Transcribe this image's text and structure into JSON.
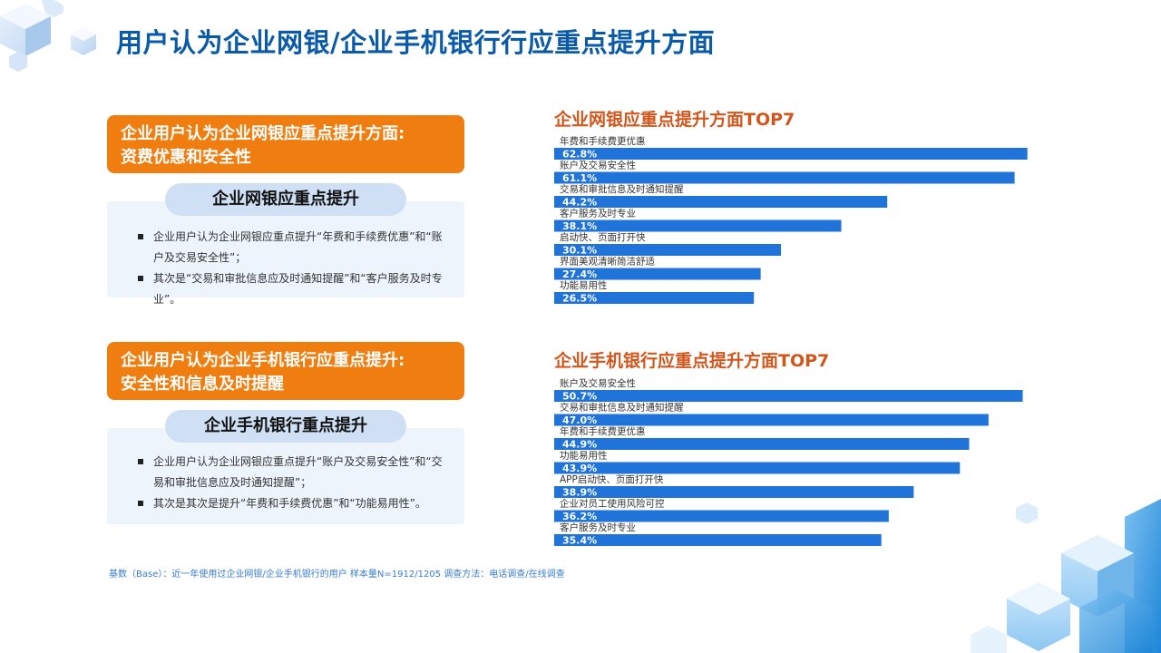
{
  "title": "用户认为企业网银/企业手机银行行应重点提升方面",
  "sections": [
    {
      "headline_line1": "企业用户认为企业网银应重点提升方面:",
      "headline_line2": "资费优惠和安全性",
      "pill": "企业网银应重点提升",
      "bullets": [
        "企业用户认为企业网银应重点提升“年费和手续费优惠”和“账户及交易安全性”；",
        "其次是“交易和审批信息应及时通知提醒”和“客户服务及时专业”。"
      ]
    },
    {
      "headline_line1": "企业用户认为企业手机银行应重点提升:",
      "headline_line2": "安全性和信息及时提醒",
      "pill": "企业手机银行重点提升",
      "bullets": [
        "企业用户认为企业网银应重点提升“账户及交易安全性”和“交易和审批信息应及时通知提醒”；",
        "其次是其次是提升“年费和手续费优惠”和“功能易用性”。"
      ]
    }
  ],
  "chart_data": [
    {
      "type": "bar",
      "orientation": "horizontal",
      "title": "企业网银应重点提升方面TOP7",
      "categories": [
        "年费和手续费更优惠",
        "账户及交易安全性",
        "交易和审批信息及时通知提醒",
        "客户服务及时专业",
        "启动快、页面打开快",
        "界面美观清晰简洁舒适",
        "功能易用性"
      ],
      "values": [
        62.8,
        61.1,
        44.2,
        38.1,
        30.1,
        27.4,
        26.5
      ],
      "labels": [
        "62.8%",
        "61.1%",
        "44.2%",
        "38.1%",
        "30.1%",
        "27.4%",
        "26.5%"
      ],
      "unit": "%",
      "xlim": [
        0,
        65
      ],
      "bar_color": "#1f73d9",
      "grid": false
    },
    {
      "type": "bar",
      "orientation": "horizontal",
      "title": "企业手机银行应重点提升方面TOP7",
      "categories": [
        "账户及交易安全性",
        "交易和审批信息及时通知提醒",
        "年费和手续费更优惠",
        "功能易用性",
        "APP启动快、页面打开快",
        "企业对员工使用风险可控",
        "客户服务及时专业"
      ],
      "values": [
        50.7,
        47.0,
        44.9,
        43.9,
        38.9,
        36.2,
        35.4
      ],
      "labels": [
        "50.7%",
        "47.0%",
        "44.9%",
        "43.9%",
        "38.9%",
        "36.2%",
        "35.4%"
      ],
      "unit": "%",
      "xlim": [
        0,
        53
      ],
      "bar_color": "#1f73d9",
      "grid": false
    }
  ],
  "footnote": "基数（Base）：近一年使用过企业网银/企业手机银行的用户 样本量N=1912/1205 调查方法：电话调查/在线调查",
  "colors": {
    "title": "#0b5aa8",
    "accent_orange": "#ef7d0f",
    "chart_title": "#d2561c",
    "bar": "#1f73d9"
  }
}
